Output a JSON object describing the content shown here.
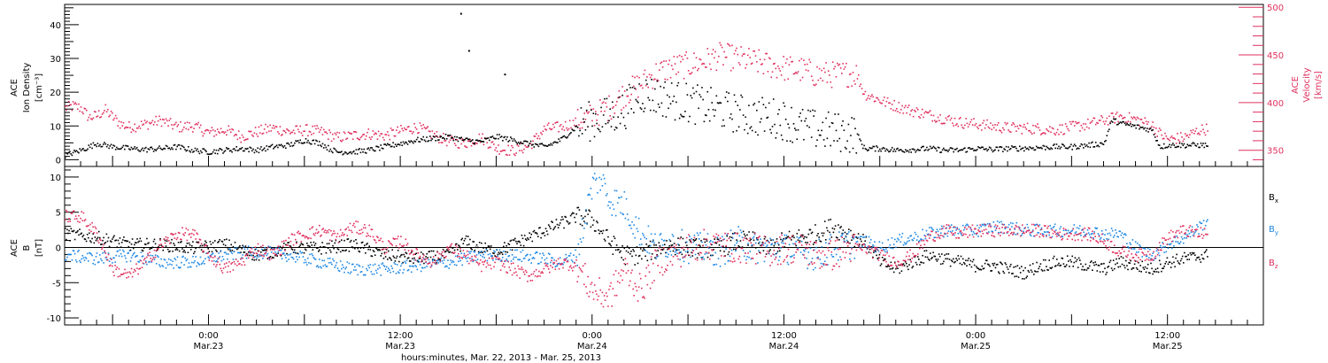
{
  "chart_data": [
    {
      "type": "scatter",
      "panel": "plasma",
      "ylabel_left": {
        "line1": "ACE",
        "line2": "Ion Density",
        "line3": "[cm⁻³]"
      },
      "ylabel_right": {
        "line1": "ACE",
        "line2": "Velocity",
        "line3": "[km/s]"
      },
      "ylim_left": [
        -2,
        46
      ],
      "ylim_right": [
        333,
        503
      ],
      "yticks_left": [
        "0",
        "10",
        "20",
        "30",
        "40"
      ],
      "yticks_right": [
        "350",
        "400",
        "450",
        "500"
      ],
      "colors": {
        "density": "#000000",
        "velocity": "#e0305e"
      },
      "density_track": [
        [
          0,
          1.5
        ],
        [
          2,
          3
        ],
        [
          4,
          5
        ],
        [
          6,
          4
        ],
        [
          8,
          3.5
        ],
        [
          10,
          3.2
        ],
        [
          12,
          3.5
        ],
        [
          14,
          4
        ],
        [
          16,
          3
        ],
        [
          18,
          2.5
        ],
        [
          20,
          3
        ],
        [
          22,
          3.5
        ],
        [
          24,
          3
        ],
        [
          26,
          4
        ],
        [
          28,
          4.5
        ],
        [
          30,
          6
        ],
        [
          32,
          5
        ],
        [
          33,
          3.5
        ],
        [
          34,
          2.5
        ],
        [
          36,
          2.5
        ],
        [
          38,
          3
        ],
        [
          40,
          4
        ],
        [
          42,
          5
        ],
        [
          44,
          6
        ],
        [
          46,
          6.5
        ],
        [
          48,
          7
        ],
        [
          50,
          6
        ],
        [
          52,
          5.5
        ],
        [
          54,
          7
        ],
        [
          56,
          6
        ],
        [
          58,
          5
        ],
        [
          60,
          4
        ],
        [
          62,
          6
        ],
        [
          64,
          10
        ],
        [
          66,
          12
        ],
        [
          68,
          13
        ],
        [
          70,
          15
        ],
        [
          71,
          18
        ],
        [
          72,
          20
        ],
        [
          74,
          19
        ],
        [
          76,
          18
        ],
        [
          78,
          17
        ],
        [
          80,
          16
        ],
        [
          82,
          15
        ],
        [
          84,
          14
        ],
        [
          86,
          13
        ],
        [
          88,
          13
        ],
        [
          90,
          12
        ],
        [
          92,
          10
        ],
        [
          94,
          9
        ],
        [
          96,
          8.5
        ],
        [
          98,
          8
        ],
        [
          99,
          8
        ],
        [
          100,
          3.5
        ],
        [
          102,
          3.5
        ],
        [
          104,
          3
        ],
        [
          106,
          3.2
        ],
        [
          108,
          3.5
        ],
        [
          110,
          3
        ],
        [
          112,
          3
        ],
        [
          114,
          3.5
        ],
        [
          116,
          3.2
        ],
        [
          118,
          3.5
        ],
        [
          120,
          3.6
        ],
        [
          122,
          3.8
        ],
        [
          124,
          4
        ],
        [
          126,
          4
        ],
        [
          128,
          4.5
        ],
        [
          130,
          5
        ],
        [
          131,
          12
        ],
        [
          132,
          11
        ],
        [
          134,
          10
        ],
        [
          136,
          9
        ],
        [
          137,
          4
        ],
        [
          138,
          4.5
        ],
        [
          140,
          4.5
        ],
        [
          142,
          4.5
        ],
        [
          143,
          4.5
        ]
      ],
      "velocity_track": [
        [
          0,
          395
        ],
        [
          1,
          397
        ],
        [
          2,
          395
        ],
        [
          3,
          385
        ],
        [
          4,
          387
        ],
        [
          5,
          393
        ],
        [
          6,
          385
        ],
        [
          7,
          378
        ],
        [
          8,
          375
        ],
        [
          10,
          378
        ],
        [
          12,
          382
        ],
        [
          14,
          375
        ],
        [
          16,
          376
        ],
        [
          18,
          369
        ],
        [
          20,
          372
        ],
        [
          22,
          365
        ],
        [
          24,
          370
        ],
        [
          26,
          374
        ],
        [
          28,
          370
        ],
        [
          30,
          372
        ],
        [
          32,
          370
        ],
        [
          34,
          364
        ],
        [
          36,
          366
        ],
        [
          38,
          368
        ],
        [
          40,
          366
        ],
        [
          42,
          371
        ],
        [
          44,
          375
        ],
        [
          46,
          367
        ],
        [
          48,
          360
        ],
        [
          50,
          358
        ],
        [
          52,
          364
        ],
        [
          54,
          353
        ],
        [
          56,
          350
        ],
        [
          58,
          355
        ],
        [
          60,
          373
        ],
        [
          62,
          375
        ],
        [
          64,
          380
        ],
        [
          66,
          387
        ],
        [
          68,
          395
        ],
        [
          70,
          410
        ],
        [
          72,
          420
        ],
        [
          74,
          432
        ],
        [
          76,
          438
        ],
        [
          78,
          440
        ],
        [
          80,
          444
        ],
        [
          82,
          450
        ],
        [
          84,
          447
        ],
        [
          86,
          444
        ],
        [
          88,
          440
        ],
        [
          90,
          437
        ],
        [
          92,
          435
        ],
        [
          93,
          433
        ],
        [
          94,
          430
        ],
        [
          96,
          430
        ],
        [
          98,
          431
        ],
        [
          99,
          431
        ],
        [
          100,
          410
        ],
        [
          102,
          403
        ],
        [
          104,
          397
        ],
        [
          106,
          392
        ],
        [
          108,
          388
        ],
        [
          110,
          384
        ],
        [
          112,
          380
        ],
        [
          114,
          378
        ],
        [
          116,
          376
        ],
        [
          118,
          374
        ],
        [
          120,
          374
        ],
        [
          122,
          373
        ],
        [
          124,
          372
        ],
        [
          126,
          375
        ],
        [
          128,
          378
        ],
        [
          130,
          382
        ],
        [
          132,
          386
        ],
        [
          134,
          383
        ],
        [
          136,
          377
        ],
        [
          137,
          368
        ],
        [
          138,
          362
        ],
        [
          140,
          364
        ],
        [
          142,
          372
        ],
        [
          143,
          373
        ]
      ],
      "sample_points": [
        {
          "x": 49.5,
          "y": 43.5,
          "series": "density"
        },
        {
          "x": 50.5,
          "y": 32.5,
          "series": "density"
        },
        {
          "x": 55.0,
          "y": 25.5,
          "series": "density"
        }
      ]
    },
    {
      "type": "scatter",
      "panel": "magnetic field",
      "ylabel": {
        "line1": "ACE",
        "line2": "B",
        "line3": "[nT]"
      },
      "ylim": [
        -11,
        11.5
      ],
      "yticks": [
        "-10",
        "-5",
        "0",
        "5",
        "10"
      ],
      "legend": [
        {
          "label": "B",
          "sub": "x",
          "color": "#000000"
        },
        {
          "label": "B",
          "sub": "y",
          "color": "#1e88e5"
        },
        {
          "label": "B",
          "sub": "z",
          "color": "#e0305e"
        }
      ],
      "bx_track": [
        [
          0,
          2
        ],
        [
          4,
          1.5
        ],
        [
          8,
          0.5
        ],
        [
          12,
          0.5
        ],
        [
          16,
          0
        ],
        [
          20,
          0.5
        ],
        [
          24,
          -1
        ],
        [
          28,
          0
        ],
        [
          32,
          0
        ],
        [
          36,
          0.5
        ],
        [
          40,
          -1
        ],
        [
          44,
          -1.5
        ],
        [
          48,
          -1
        ],
        [
          50,
          1
        ],
        [
          52,
          0
        ],
        [
          54,
          -0.5
        ],
        [
          56,
          0.5
        ],
        [
          58,
          1.5
        ],
        [
          60,
          2.5
        ],
        [
          62,
          3.5
        ],
        [
          64,
          4.5
        ],
        [
          66,
          4
        ],
        [
          68,
          1
        ],
        [
          70,
          -1
        ],
        [
          72,
          -1
        ],
        [
          74,
          0
        ],
        [
          76,
          0.5
        ],
        [
          78,
          0
        ],
        [
          80,
          0
        ],
        [
          82,
          0
        ],
        [
          84,
          1
        ],
        [
          86,
          1
        ],
        [
          88,
          0
        ],
        [
          90,
          1
        ],
        [
          92,
          1.5
        ],
        [
          94,
          2
        ],
        [
          96,
          3
        ],
        [
          98,
          2
        ],
        [
          100,
          1
        ],
        [
          102,
          -2
        ],
        [
          104,
          -3
        ],
        [
          106,
          -2
        ],
        [
          108,
          -1
        ],
        [
          110,
          -1.5
        ],
        [
          112,
          -2
        ],
        [
          114,
          -2.5
        ],
        [
          116,
          -2.5
        ],
        [
          118,
          -3
        ],
        [
          120,
          -3.5
        ],
        [
          122,
          -2.5
        ],
        [
          124,
          -2
        ],
        [
          126,
          -2
        ],
        [
          128,
          -2.5
        ],
        [
          130,
          -3
        ],
        [
          132,
          -2
        ],
        [
          134,
          -2.5
        ],
        [
          136,
          -3
        ],
        [
          138,
          -2
        ],
        [
          140,
          -1.5
        ],
        [
          143,
          -1
        ]
      ],
      "by_track": [
        [
          0,
          -1
        ],
        [
          4,
          -1.5
        ],
        [
          8,
          -1
        ],
        [
          12,
          -2
        ],
        [
          16,
          -2
        ],
        [
          20,
          -1
        ],
        [
          24,
          -0.5
        ],
        [
          28,
          -1
        ],
        [
          32,
          -2
        ],
        [
          36,
          -3
        ],
        [
          40,
          -3
        ],
        [
          44,
          -2.5
        ],
        [
          48,
          -2
        ],
        [
          52,
          -1
        ],
        [
          56,
          -1
        ],
        [
          60,
          -1.5
        ],
        [
          62,
          -2
        ],
        [
          64,
          -1
        ],
        [
          66,
          9
        ],
        [
          67,
          10
        ],
        [
          68,
          7
        ],
        [
          70,
          6
        ],
        [
          72,
          2
        ],
        [
          74,
          0
        ],
        [
          76,
          1
        ],
        [
          78,
          0
        ],
        [
          80,
          0
        ],
        [
          82,
          -0.5
        ],
        [
          84,
          1
        ],
        [
          86,
          0
        ],
        [
          88,
          0
        ],
        [
          90,
          0
        ],
        [
          92,
          -0.5
        ],
        [
          94,
          -1
        ],
        [
          96,
          0
        ],
        [
          98,
          0.5
        ],
        [
          100,
          1
        ],
        [
          102,
          0
        ],
        [
          104,
          1
        ],
        [
          106,
          1.5
        ],
        [
          108,
          2
        ],
        [
          110,
          2.5
        ],
        [
          112,
          2.5
        ],
        [
          114,
          2.5
        ],
        [
          116,
          3
        ],
        [
          118,
          3
        ],
        [
          120,
          2.5
        ],
        [
          122,
          2.5
        ],
        [
          124,
          2.5
        ],
        [
          126,
          2.5
        ],
        [
          128,
          2.5
        ],
        [
          130,
          2
        ],
        [
          132,
          2
        ],
        [
          134,
          0
        ],
        [
          136,
          -1
        ],
        [
          138,
          0.5
        ],
        [
          140,
          1.5
        ],
        [
          142,
          3
        ],
        [
          143,
          4
        ]
      ],
      "bz_track": [
        [
          0,
          4.5
        ],
        [
          2,
          4.5
        ],
        [
          4,
          2
        ],
        [
          6,
          -3
        ],
        [
          8,
          -4
        ],
        [
          10,
          -2
        ],
        [
          12,
          0.5
        ],
        [
          14,
          2
        ],
        [
          16,
          2
        ],
        [
          18,
          -1
        ],
        [
          20,
          -3
        ],
        [
          22,
          -2
        ],
        [
          24,
          0
        ],
        [
          26,
          -1
        ],
        [
          28,
          1
        ],
        [
          30,
          2
        ],
        [
          32,
          2.5
        ],
        [
          34,
          1.5
        ],
        [
          36,
          3
        ],
        [
          38,
          2.5
        ],
        [
          40,
          0
        ],
        [
          42,
          1
        ],
        [
          44,
          -1
        ],
        [
          46,
          -2
        ],
        [
          48,
          0
        ],
        [
          50,
          -1
        ],
        [
          52,
          -2.5
        ],
        [
          54,
          -2
        ],
        [
          56,
          -3
        ],
        [
          58,
          -4
        ],
        [
          60,
          -3
        ],
        [
          62,
          -2
        ],
        [
          64,
          -2.5
        ],
        [
          66,
          -6
        ],
        [
          68,
          -7
        ],
        [
          70,
          -3
        ],
        [
          72,
          -6
        ],
        [
          74,
          -2
        ],
        [
          76,
          -1
        ],
        [
          78,
          0
        ],
        [
          80,
          0.5
        ],
        [
          82,
          0.5
        ],
        [
          84,
          0
        ],
        [
          86,
          0
        ],
        [
          88,
          -0.5
        ],
        [
          90,
          0
        ],
        [
          92,
          0
        ],
        [
          94,
          -1
        ],
        [
          96,
          -1
        ],
        [
          98,
          0
        ],
        [
          100,
          0
        ],
        [
          102,
          -1
        ],
        [
          104,
          -2
        ],
        [
          106,
          -1
        ],
        [
          108,
          1.5
        ],
        [
          110,
          2.5
        ],
        [
          112,
          2
        ],
        [
          114,
          2.5
        ],
        [
          116,
          2.5
        ],
        [
          118,
          2.5
        ],
        [
          120,
          2.5
        ],
        [
          122,
          2.5
        ],
        [
          124,
          2
        ],
        [
          126,
          2
        ],
        [
          128,
          2
        ],
        [
          130,
          1
        ],
        [
          132,
          -0.5
        ],
        [
          134,
          -1
        ],
        [
          136,
          -1
        ],
        [
          138,
          1.5
        ],
        [
          140,
          2.5
        ],
        [
          142,
          2
        ],
        [
          143,
          2
        ]
      ]
    }
  ],
  "xaxis": {
    "range_hours": [
      0,
      150
    ],
    "ticks": [
      {
        "h": 18,
        "l1": "0:00",
        "l2": "Mar.23"
      },
      {
        "h": 42,
        "l1": "12:00",
        "l2": "Mar.23"
      },
      {
        "h": 66,
        "l1": "0:00",
        "l2": "Mar.24"
      },
      {
        "h": 90,
        "l1": "12:00",
        "l2": "Mar.24"
      },
      {
        "h": 114,
        "l1": "0:00",
        "l2": "Mar.25"
      },
      {
        "h": 138,
        "l1": "12:00",
        "l2": "Mar.25"
      }
    ],
    "label": "hours:minutes, Mar. 22, 2013 - Mar. 25, 2013"
  }
}
